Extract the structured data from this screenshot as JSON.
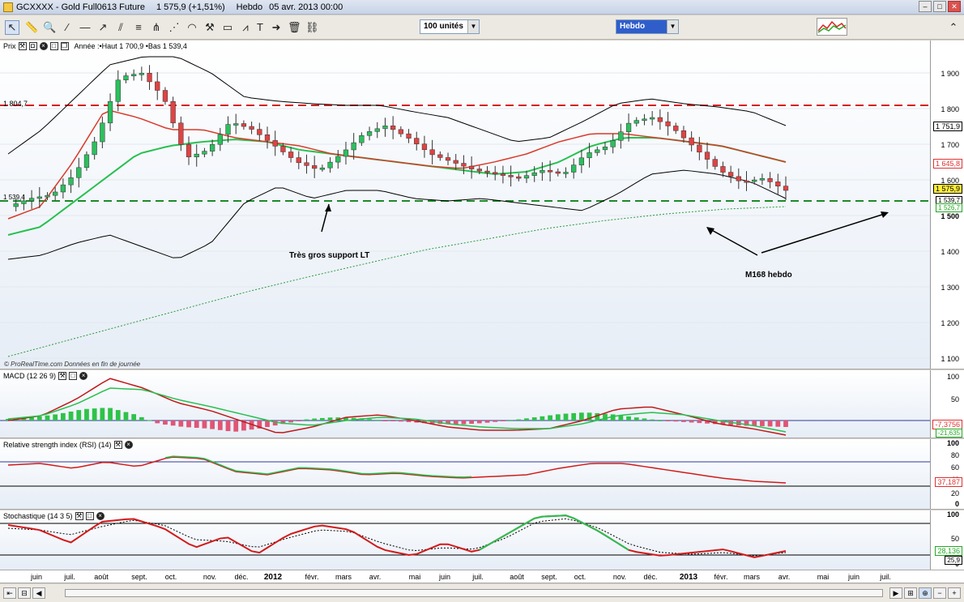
{
  "window": {
    "title": "GCXXXX - Gold Full0613 Future",
    "price": "1 575,9 (+1,51%)",
    "period": "Hebdo",
    "date": "05 avr. 2013 00:00"
  },
  "toolbar": {
    "units_select": "100 unités",
    "period_select": "Hebdo"
  },
  "panes": {
    "price": {
      "label": "Prix",
      "info": "Année :•Haut 1 700,9 •Bas 1 539,4",
      "levels": {
        "resistance": "1 804,7",
        "support": "1 539,4"
      },
      "ticks": [
        "1 900",
        "1 800",
        "1 700",
        "1 600",
        "1 500",
        "1 400",
        "1 300",
        "1 200",
        "1 100"
      ],
      "boxes": {
        "bb_upper": "1 751,9",
        "ma_red": "1 645,8",
        "last": "1 575,9",
        "bb_lower": "1 539,7",
        "ma_green": "1 526,7"
      },
      "annotations": {
        "support": "Très gros support LT",
        "m168": "M168 hebdo"
      },
      "credit": "© ProRealTime.com  Données en fin de journée"
    },
    "macd": {
      "label": "MACD (12 26 9)",
      "ticks": [
        "100",
        "50",
        "0"
      ],
      "values": [
        "-7,3756",
        "-21,635"
      ]
    },
    "rsi": {
      "label": "Relative strength index (RSI) (14)",
      "ticks": [
        "100",
        "80",
        "60",
        "40",
        "20",
        "0"
      ],
      "value": "37,187"
    },
    "stoch": {
      "label": "Stochastique (14 3 5)",
      "ticks": [
        "100",
        "50",
        "0"
      ],
      "values": [
        "28,136",
        "25,9"
      ]
    }
  },
  "xaxis": [
    "juin",
    "juil.",
    "août",
    "sept.",
    "oct.",
    "nov.",
    "déc.",
    "2012",
    "févr.",
    "mars",
    "avr.",
    "mai",
    "juin",
    "juil.",
    "août",
    "sept.",
    "oct.",
    "nov.",
    "déc.",
    "2013",
    "févr.",
    "mars",
    "avr.",
    "mai",
    "juin",
    "juil."
  ],
  "colors": {
    "up": "#2dbf5e",
    "down": "#e04343",
    "resistance": "#d62020",
    "support": "#1c8a2a",
    "macd_hist_pos": "#2fc24a",
    "macd_hist_neg": "#e05575"
  }
}
